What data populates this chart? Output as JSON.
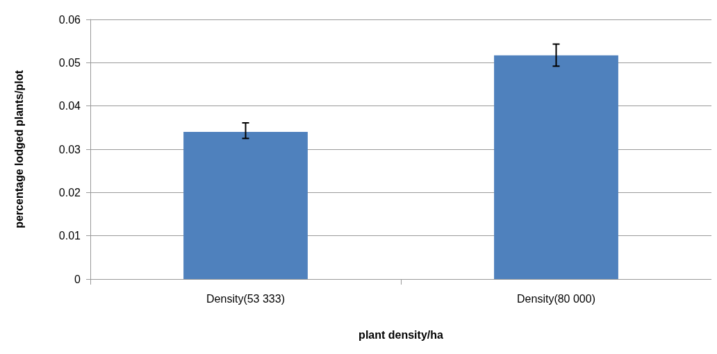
{
  "chart_data": {
    "type": "bar",
    "xlabel": "plant density/ha",
    "ylabel": "percentage lodged plants/plot",
    "categories": [
      "Density(53 333)",
      "Density(80 000)"
    ],
    "values": [
      0.034,
      0.0517
    ],
    "errors": [
      [
        0.0325,
        0.0361
      ],
      [
        0.0492,
        0.0543
      ]
    ],
    "color": "#4f81bd",
    "ylim": [
      0,
      0.06
    ],
    "yticks": [
      0,
      0.01,
      0.02,
      0.03,
      0.04,
      0.05,
      0.06
    ],
    "grid": "y"
  }
}
